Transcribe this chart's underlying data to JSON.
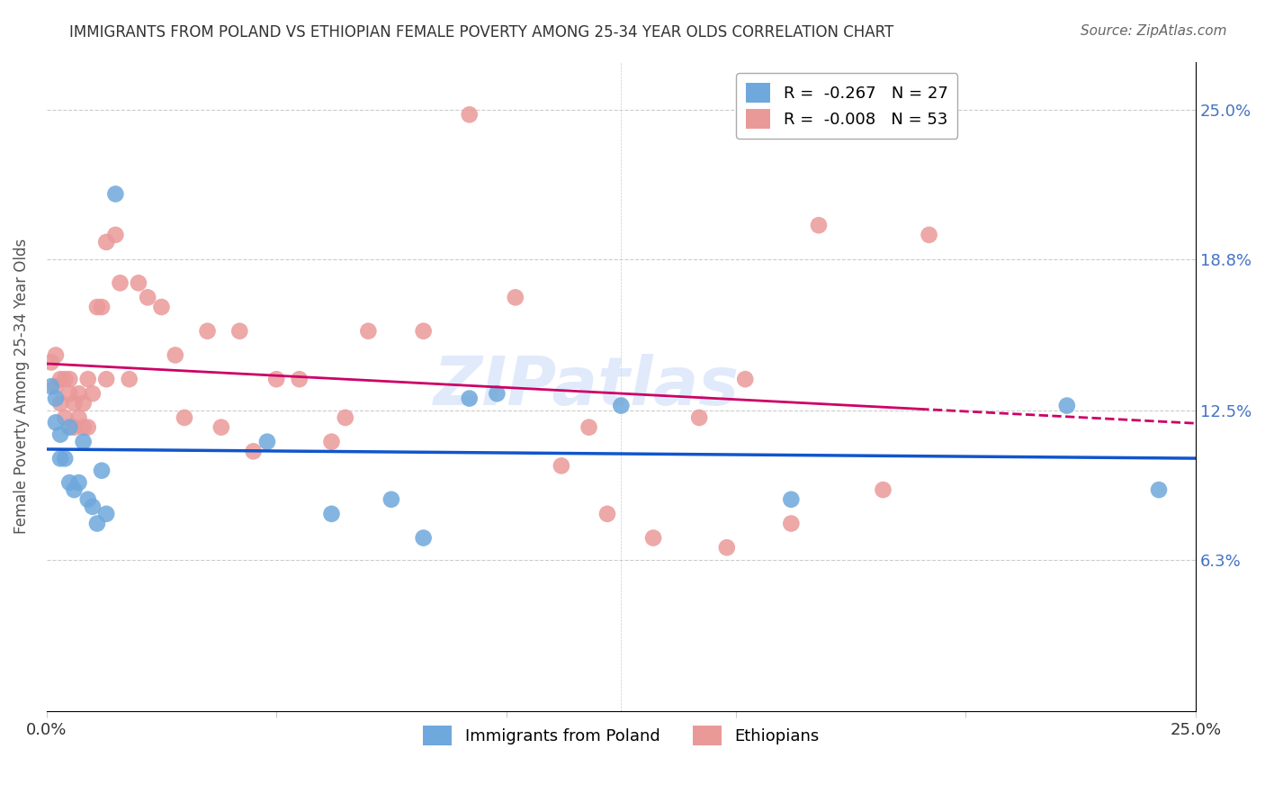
{
  "title": "IMMIGRANTS FROM POLAND VS ETHIOPIAN FEMALE POVERTY AMONG 25-34 YEAR OLDS CORRELATION CHART",
  "source": "Source: ZipAtlas.com",
  "ylabel": "Female Poverty Among 25-34 Year Olds",
  "xlim": [
    0.0,
    0.25
  ],
  "ylim": [
    0.0,
    0.27
  ],
  "ytick_labels": [
    "6.3%",
    "12.5%",
    "18.8%",
    "25.0%"
  ],
  "ytick_values": [
    0.063,
    0.125,
    0.188,
    0.25
  ],
  "xtick_labels": [
    "0.0%",
    "25.0%"
  ],
  "xtick_values": [
    0.0,
    0.25
  ],
  "poland_color": "#6fa8dc",
  "ethiopia_color": "#ea9999",
  "legend_label_1": "R =  -0.267   N = 27",
  "legend_label_2": "R =  -0.008   N = 53",
  "legend_label_bottom_1": "Immigrants from Poland",
  "legend_label_bottom_2": "Ethiopians",
  "watermark": "ZIPatlas",
  "poland_x": [
    0.001,
    0.002,
    0.002,
    0.003,
    0.003,
    0.004,
    0.005,
    0.005,
    0.006,
    0.007,
    0.008,
    0.009,
    0.01,
    0.011,
    0.012,
    0.013,
    0.015,
    0.048,
    0.062,
    0.075,
    0.082,
    0.092,
    0.098,
    0.125,
    0.162,
    0.222,
    0.242
  ],
  "poland_y": [
    0.135,
    0.13,
    0.12,
    0.115,
    0.105,
    0.105,
    0.118,
    0.095,
    0.092,
    0.095,
    0.112,
    0.088,
    0.085,
    0.078,
    0.1,
    0.082,
    0.215,
    0.112,
    0.082,
    0.088,
    0.072,
    0.13,
    0.132,
    0.127,
    0.088,
    0.127,
    0.092
  ],
  "ethiopia_x": [
    0.001,
    0.002,
    0.002,
    0.003,
    0.003,
    0.004,
    0.004,
    0.005,
    0.005,
    0.006,
    0.006,
    0.007,
    0.007,
    0.008,
    0.008,
    0.009,
    0.009,
    0.01,
    0.011,
    0.012,
    0.013,
    0.013,
    0.015,
    0.016,
    0.018,
    0.02,
    0.022,
    0.025,
    0.028,
    0.03,
    0.035,
    0.038,
    0.042,
    0.045,
    0.05,
    0.055,
    0.062,
    0.065,
    0.07,
    0.082,
    0.092,
    0.102,
    0.112,
    0.118,
    0.122,
    0.132,
    0.142,
    0.148,
    0.152,
    0.162,
    0.168,
    0.182,
    0.192
  ],
  "ethiopia_y": [
    0.145,
    0.148,
    0.135,
    0.138,
    0.128,
    0.138,
    0.122,
    0.138,
    0.132,
    0.128,
    0.118,
    0.132,
    0.122,
    0.128,
    0.118,
    0.138,
    0.118,
    0.132,
    0.168,
    0.168,
    0.195,
    0.138,
    0.198,
    0.178,
    0.138,
    0.178,
    0.172,
    0.168,
    0.148,
    0.122,
    0.158,
    0.118,
    0.158,
    0.108,
    0.138,
    0.138,
    0.112,
    0.122,
    0.158,
    0.158,
    0.248,
    0.172,
    0.102,
    0.118,
    0.082,
    0.072,
    0.122,
    0.068,
    0.138,
    0.078,
    0.202,
    0.092,
    0.198
  ]
}
